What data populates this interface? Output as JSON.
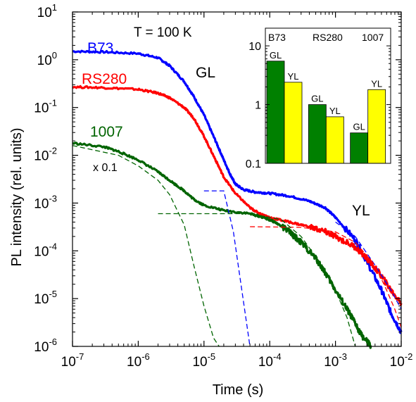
{
  "chart_data": [
    {
      "type": "line",
      "xlabel": "Time (s)",
      "ylabel": "PL intensity (rel. units)",
      "xscale": "log",
      "yscale": "log",
      "xlim": [
        1e-07,
        0.01
      ],
      "ylim": [
        1e-06,
        10
      ],
      "x_ticks": [
        {
          "v": 1e-07,
          "b": "10",
          "e": "-7"
        },
        {
          "v": 1e-06,
          "b": "10",
          "e": "-6"
        },
        {
          "v": 1e-05,
          "b": "10",
          "e": "-5"
        },
        {
          "v": 0.0001,
          "b": "10",
          "e": "-4"
        },
        {
          "v": 0.001,
          "b": "10",
          "e": "-3"
        },
        {
          "v": 0.01,
          "b": "10",
          "e": "-2"
        }
      ],
      "y_ticks": [
        {
          "v": 10,
          "b": "10",
          "e": "1"
        },
        {
          "v": 1,
          "b": "10",
          "e": "0"
        },
        {
          "v": 0.1,
          "b": "10",
          "e": "-1"
        },
        {
          "v": 0.01,
          "b": "10",
          "e": "-2"
        },
        {
          "v": 0.001,
          "b": "10",
          "e": "-3"
        },
        {
          "v": 0.0001,
          "b": "10",
          "e": "-4"
        },
        {
          "v": 1e-05,
          "b": "10",
          "e": "-5"
        },
        {
          "v": 1e-06,
          "b": "10",
          "e": "-6"
        }
      ],
      "grid": false,
      "series": [
        {
          "name": "B73",
          "color": "#0000ff",
          "points": [
            [
              1e-07,
              1.5
            ],
            [
              3e-07,
              1.45
            ],
            [
              1e-06,
              1.35
            ],
            [
              2e-06,
              1.1
            ],
            [
              3e-06,
              0.75
            ],
            [
              5e-06,
              0.35
            ],
            [
              7e-06,
              0.17
            ],
            [
              1e-05,
              0.07
            ],
            [
              1.5e-05,
              0.02
            ],
            [
              2e-05,
              0.008
            ],
            [
              2.5e-05,
              0.004
            ],
            [
              3e-05,
              0.0025
            ],
            [
              4e-05,
              0.0019
            ],
            [
              6e-05,
              0.0017
            ],
            [
              0.0001,
              0.0016
            ],
            [
              0.0002,
              0.0014
            ],
            [
              0.0004,
              0.0011
            ],
            [
              0.0007,
              0.0008
            ],
            [
              0.001,
              0.0005
            ],
            [
              0.002,
              0.00017
            ],
            [
              0.003,
              6e-05
            ],
            [
              0.005,
              1.5e-05
            ],
            [
              0.007,
              5e-06
            ],
            [
              0.01,
              2e-06
            ]
          ]
        },
        {
          "name": "RS280",
          "color": "#ff0000",
          "points": [
            [
              1e-07,
              0.27
            ],
            [
              3e-07,
              0.26
            ],
            [
              1e-06,
              0.24
            ],
            [
              2e-06,
              0.2
            ],
            [
              3e-06,
              0.16
            ],
            [
              5e-06,
              0.1
            ],
            [
              7e-06,
              0.06
            ],
            [
              1e-05,
              0.025
            ],
            [
              1.5e-05,
              0.008
            ],
            [
              2e-05,
              0.0035
            ],
            [
              3e-05,
              0.0016
            ],
            [
              5e-05,
              0.0008
            ],
            [
              7e-05,
              0.0006
            ],
            [
              0.0001,
              0.0005
            ],
            [
              0.0002,
              0.0004
            ],
            [
              0.0004,
              0.00032
            ],
            [
              0.0007,
              0.00025
            ],
            [
              0.001,
              0.0002
            ],
            [
              0.002,
              0.00012
            ],
            [
              0.003,
              7e-05
            ],
            [
              0.005,
              3e-05
            ],
            [
              0.007,
              1.5e-05
            ],
            [
              0.01,
              8e-06
            ]
          ]
        },
        {
          "name": "1007",
          "color": "#006400",
          "points": [
            [
              1e-07,
              0.018
            ],
            [
              3e-07,
              0.015
            ],
            [
              5e-07,
              0.012
            ],
            [
              1e-06,
              0.008
            ],
            [
              2e-06,
              0.0045
            ],
            [
              3e-06,
              0.003
            ],
            [
              5e-06,
              0.0018
            ],
            [
              7e-06,
              0.0012
            ],
            [
              1e-05,
              0.0009
            ],
            [
              2e-05,
              0.0007
            ],
            [
              5e-05,
              0.0006
            ],
            [
              8e-05,
              0.0005
            ],
            [
              0.00012,
              0.0004
            ],
            [
              0.0002,
              0.00025
            ],
            [
              0.0003,
              0.00015
            ],
            [
              0.0005,
              7e-05
            ],
            [
              0.0007,
              3.5e-05
            ],
            [
              0.001,
              1.5e-05
            ],
            [
              0.0015,
              6e-06
            ],
            [
              0.002,
              3e-06
            ],
            [
              0.0025,
              1.7e-06
            ],
            [
              0.0035,
              1e-06
            ]
          ]
        }
      ],
      "fit_curves": [
        {
          "color": "#0000ff",
          "points": [
            [
              1e-05,
              0.0018
            ],
            [
              2e-05,
              0.0018
            ],
            [
              2.8e-05,
              0.00025
            ],
            [
              3.5e-05,
              3e-05
            ],
            [
              5e-05,
              1e-06
            ]
          ]
        },
        {
          "color": "#0000ff",
          "points": [
            [
              0.001,
              0.0004
            ],
            [
              0.002,
              0.0002
            ],
            [
              0.004,
              5e-05
            ],
            [
              0.007,
              1.5e-05
            ],
            [
              0.01,
              6e-06
            ]
          ]
        },
        {
          "color": "#ff0000",
          "points": [
            [
              5e-05,
              0.00032
            ],
            [
              0.0003,
              0.00031
            ],
            [
              0.001,
              0.00025
            ],
            [
              0.002,
              0.00015
            ],
            [
              0.004,
              5e-05
            ],
            [
              0.006,
              1.5e-05
            ],
            [
              0.008,
              6e-06
            ],
            [
              0.01,
              2.5e-06
            ]
          ]
        },
        {
          "color": "#006400",
          "points": [
            [
              1e-07,
              0.016
            ],
            [
              5e-07,
              0.01
            ],
            [
              1e-06,
              0.006
            ],
            [
              2e-06,
              0.003
            ],
            [
              3e-06,
              0.0015
            ],
            [
              5e-06,
              0.00035
            ],
            [
              7e-06,
              5e-05
            ],
            [
              1e-05,
              7e-06
            ],
            [
              1.4e-05,
              1.5e-06
            ],
            [
              1.7e-05,
              1e-06
            ]
          ]
        },
        {
          "color": "#006400",
          "points": [
            [
              2e-06,
              0.0006
            ],
            [
              5e-05,
              0.0006
            ],
            [
              0.00015,
              0.00045
            ],
            [
              0.0003,
              0.0002
            ],
            [
              0.0007,
              4e-05
            ],
            [
              0.001,
              1.5e-05
            ],
            [
              0.0015,
              4e-06
            ],
            [
              0.002,
              1e-06
            ]
          ]
        }
      ],
      "annotations": [
        "T = 100 K",
        "GL",
        "YL",
        "x 0.1"
      ]
    },
    {
      "type": "bar",
      "yscale": "log",
      "ylim": [
        0.1,
        20
      ],
      "y_ticks": [
        {
          "v": 10,
          "t": "10"
        },
        {
          "v": 1,
          "t": "1"
        },
        {
          "v": 0.1,
          "t": "0.1"
        }
      ],
      "categories": [
        "B73",
        "RS280",
        "1007"
      ],
      "series": [
        {
          "name": "GL",
          "color": "#008000",
          "values": [
            5.5,
            1.0,
            0.33
          ]
        },
        {
          "name": "YL",
          "color": "#ffff00",
          "values": [
            2.4,
            0.62,
            1.8
          ]
        }
      ]
    }
  ]
}
